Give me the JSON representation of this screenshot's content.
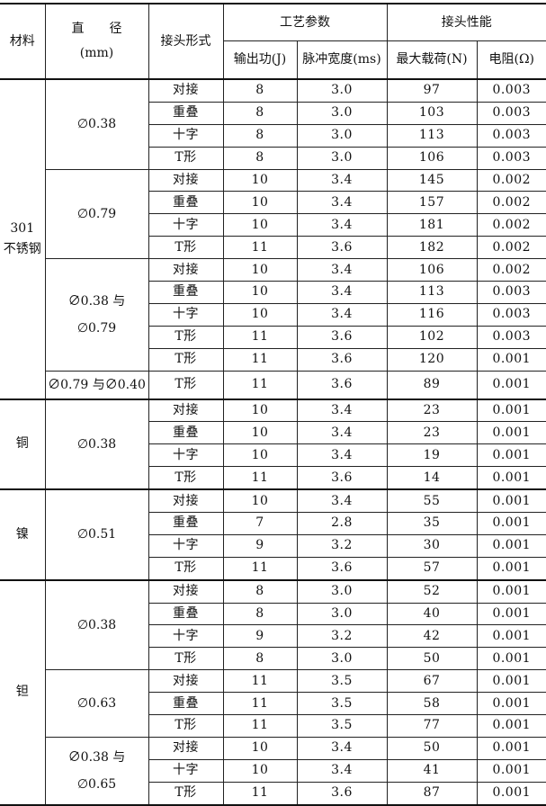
{
  "headers": {
    "material": "材料",
    "diameter": "直　　径\n(mm)",
    "joint": "接头形式",
    "process": "工艺参数",
    "performance": "接头性能",
    "energy": "输出功(J)",
    "pulse": "脉冲宽度(ms)",
    "load": "最大载荷(N)",
    "resistance": "电阻(Ω)"
  },
  "materials": [
    {
      "name": "301\n不锈钢",
      "diameters": [
        {
          "label": "∅0.38",
          "rows": [
            [
              "对接",
              "8",
              "3.0",
              "97",
              "0.003"
            ],
            [
              "重叠",
              "8",
              "3.0",
              "103",
              "0.003"
            ],
            [
              "十字",
              "8",
              "3.0",
              "113",
              "0.003"
            ],
            [
              "T形",
              "8",
              "3.0",
              "106",
              "0.003"
            ]
          ]
        },
        {
          "label": "∅0.79",
          "rows": [
            [
              "对接",
              "10",
              "3.4",
              "145",
              "0.002"
            ],
            [
              "重叠",
              "10",
              "3.4",
              "157",
              "0.002"
            ],
            [
              "十字",
              "10",
              "3.4",
              "181",
              "0.002"
            ],
            [
              "T形",
              "11",
              "3.6",
              "182",
              "0.002"
            ]
          ]
        },
        {
          "label": "∅0.38 与\n∅0.79",
          "rows": [
            [
              "对接",
              "10",
              "3.4",
              "106",
              "0.002"
            ],
            [
              "重叠",
              "10",
              "3.4",
              "113",
              "0.003"
            ],
            [
              "十字",
              "10",
              "3.4",
              "116",
              "0.003"
            ],
            [
              "T形",
              "11",
              "3.6",
              "102",
              "0.003"
            ],
            [
              "T形",
              "11",
              "3.6",
              "120",
              "0.001"
            ]
          ]
        },
        {
          "label": "∅0.79 与∅0.40",
          "rows": [
            [
              "T形",
              "11",
              "3.6",
              "89",
              "0.001"
            ]
          ]
        }
      ]
    },
    {
      "name": "铜",
      "diameters": [
        {
          "label": "∅0.38",
          "rows": [
            [
              "对接",
              "10",
              "3.4",
              "23",
              "0.001"
            ],
            [
              "重叠",
              "10",
              "3.4",
              "23",
              "0.001"
            ],
            [
              "十字",
              "10",
              "3.4",
              "19",
              "0.001"
            ],
            [
              "T形",
              "11",
              "3.6",
              "14",
              "0.001"
            ]
          ]
        }
      ]
    },
    {
      "name": "镍",
      "diameters": [
        {
          "label": "∅0.51",
          "rows": [
            [
              "对接",
              "10",
              "3.4",
              "55",
              "0.001"
            ],
            [
              "重叠",
              "7",
              "2.8",
              "35",
              "0.001"
            ],
            [
              "十字",
              "9",
              "3.2",
              "30",
              "0.001"
            ],
            [
              "T形",
              "11",
              "3.6",
              "57",
              "0.001"
            ]
          ]
        }
      ]
    },
    {
      "name": "钽",
      "diameters": [
        {
          "label": "∅0.38",
          "rows": [
            [
              "对接",
              "8",
              "3.0",
              "52",
              "0.001"
            ],
            [
              "重叠",
              "8",
              "3.0",
              "40",
              "0.001"
            ],
            [
              "十字",
              "9",
              "3.2",
              "42",
              "0.001"
            ],
            [
              "T形",
              "8",
              "3.0",
              "50",
              "0.001"
            ]
          ]
        },
        {
          "label": "∅0.63",
          "rows": [
            [
              "对接",
              "11",
              "3.5",
              "67",
              "0.001"
            ],
            [
              "重叠",
              "11",
              "3.5",
              "58",
              "0.001"
            ],
            [
              "T形",
              "11",
              "3.5",
              "77",
              "0.001"
            ]
          ]
        },
        {
          "label": "∅0.38 与\n∅0.65",
          "rows": [
            [
              "对接",
              "10",
              "3.4",
              "50",
              "0.001"
            ],
            [
              "十字",
              "10",
              "3.4",
              "41",
              "0.001"
            ],
            [
              "T形",
              "11",
              "3.6",
              "87",
              "0.001"
            ]
          ]
        }
      ]
    }
  ]
}
